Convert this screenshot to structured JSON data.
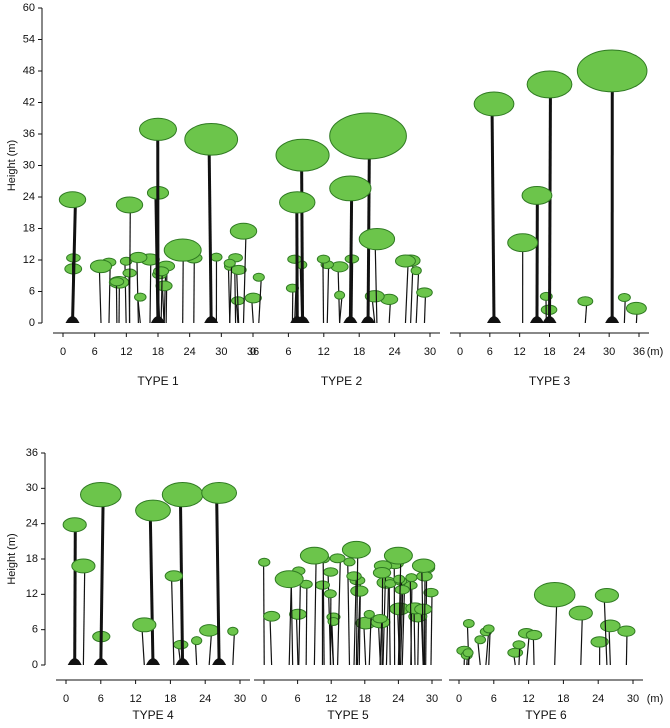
{
  "rows": [
    {
      "y_label": "Height (m)",
      "y_ticks": [
        0,
        6,
        12,
        18,
        24,
        30,
        36,
        42,
        48,
        54,
        60
      ],
      "x_unit": "(m)",
      "panels": [
        {
          "label": "TYPE 1",
          "x_ticks": [
            0,
            6,
            12,
            18,
            24,
            30,
            36
          ]
        },
        {
          "label": "TYPE 2",
          "x_ticks": [
            0,
            6,
            12,
            18,
            24,
            30
          ]
        },
        {
          "label": "TYPE 3",
          "x_ticks": [
            0,
            6,
            12,
            18,
            24,
            30,
            36
          ]
        }
      ]
    },
    {
      "y_label": "Height (m)",
      "y_ticks": [
        0,
        6,
        12,
        18,
        24,
        30,
        36
      ],
      "x_unit": "(m)",
      "panels": [
        {
          "label": "TYPE 4",
          "x_ticks": [
            0,
            6,
            12,
            18,
            24,
            30
          ]
        },
        {
          "label": "TYPE 5",
          "x_ticks": [
            0,
            6,
            12,
            18,
            24,
            30
          ]
        },
        {
          "label": "TYPE 6",
          "x_ticks": [
            0,
            6,
            12,
            18,
            24,
            30
          ]
        }
      ]
    }
  ]
}
